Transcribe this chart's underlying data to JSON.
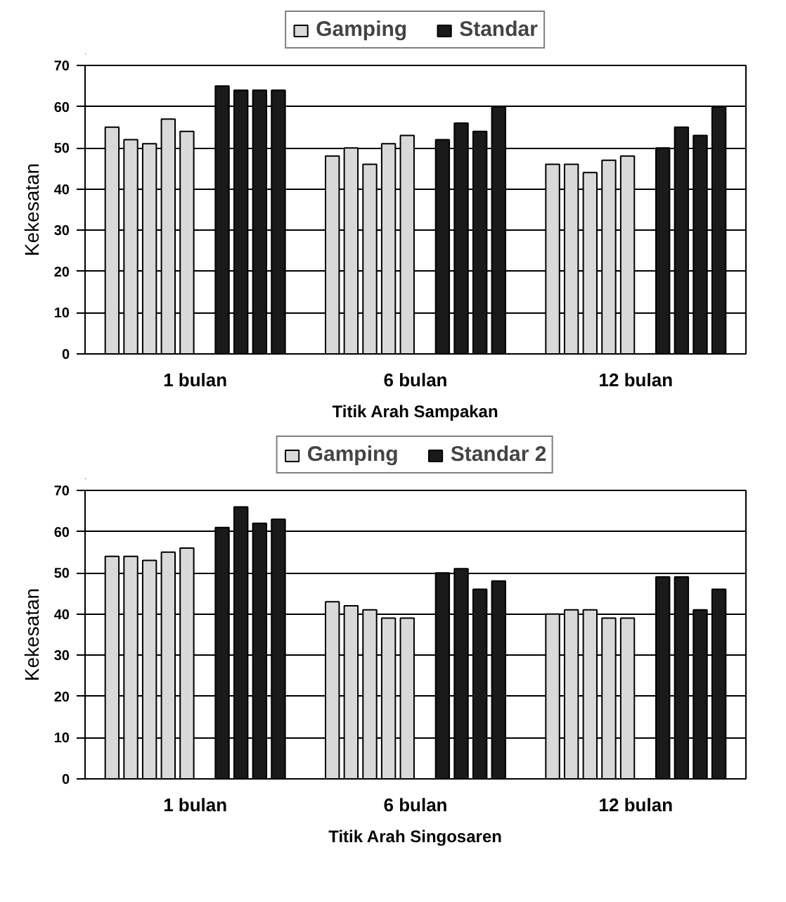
{
  "chart_data": [
    {
      "type": "bar",
      "xlabel": "Titik Arah Sampakan",
      "ylabel": "Kekesatan",
      "categories": [
        "1 bulan",
        "6 bulan",
        "12 bulan"
      ],
      "ylim": [
        0,
        70
      ],
      "yticks": [
        0,
        10,
        20,
        30,
        40,
        50,
        60,
        70
      ],
      "grid": "y",
      "legend": "top",
      "series": [
        {
          "name": "Gamping",
          "color": "#d9d9d9",
          "values": [
            55,
            48,
            46
          ]
        },
        {
          "color": "#d9d9d9",
          "values": [
            52,
            50,
            46
          ]
        },
        {
          "color": "#d9d9d9",
          "values": [
            51,
            46,
            44
          ]
        },
        {
          "color": "#d9d9d9",
          "values": [
            57,
            51,
            47
          ]
        },
        {
          "color": "#d9d9d9",
          "values": [
            54,
            53,
            48
          ]
        },
        {
          "name": "Standar",
          "color": "#1a1a1a",
          "values": [
            65,
            52,
            50
          ]
        },
        {
          "color": "#1a1a1a",
          "values": [
            64,
            56,
            55
          ]
        },
        {
          "color": "#1a1a1a",
          "values": [
            64,
            54,
            53
          ]
        },
        {
          "color": "#1a1a1a",
          "values": [
            64,
            60,
            60
          ]
        }
      ]
    },
    {
      "type": "bar",
      "xlabel": "Titik Arah Singosaren",
      "ylabel": "Kekesatan",
      "categories": [
        "1 bulan",
        "6 bulan",
        "12 bulan"
      ],
      "ylim": [
        0,
        70
      ],
      "yticks": [
        0,
        10,
        20,
        30,
        40,
        50,
        60,
        70
      ],
      "grid": "y",
      "legend": "top",
      "series": [
        {
          "name": "Gamping",
          "color": "#d9d9d9",
          "values": [
            54,
            43,
            40
          ]
        },
        {
          "color": "#d9d9d9",
          "values": [
            54,
            42,
            41
          ]
        },
        {
          "color": "#d9d9d9",
          "values": [
            53,
            41,
            41
          ]
        },
        {
          "color": "#d9d9d9",
          "values": [
            55,
            39,
            39
          ]
        },
        {
          "color": "#d9d9d9",
          "values": [
            56,
            39,
            39
          ]
        },
        {
          "name": "Standar 2",
          "color": "#1a1a1a",
          "values": [
            61,
            50,
            49
          ]
        },
        {
          "color": "#1a1a1a",
          "values": [
            66,
            51,
            49
          ]
        },
        {
          "color": "#1a1a1a",
          "values": [
            62,
            46,
            41
          ]
        },
        {
          "color": "#1a1a1a",
          "values": [
            63,
            48,
            46
          ]
        }
      ]
    }
  ]
}
